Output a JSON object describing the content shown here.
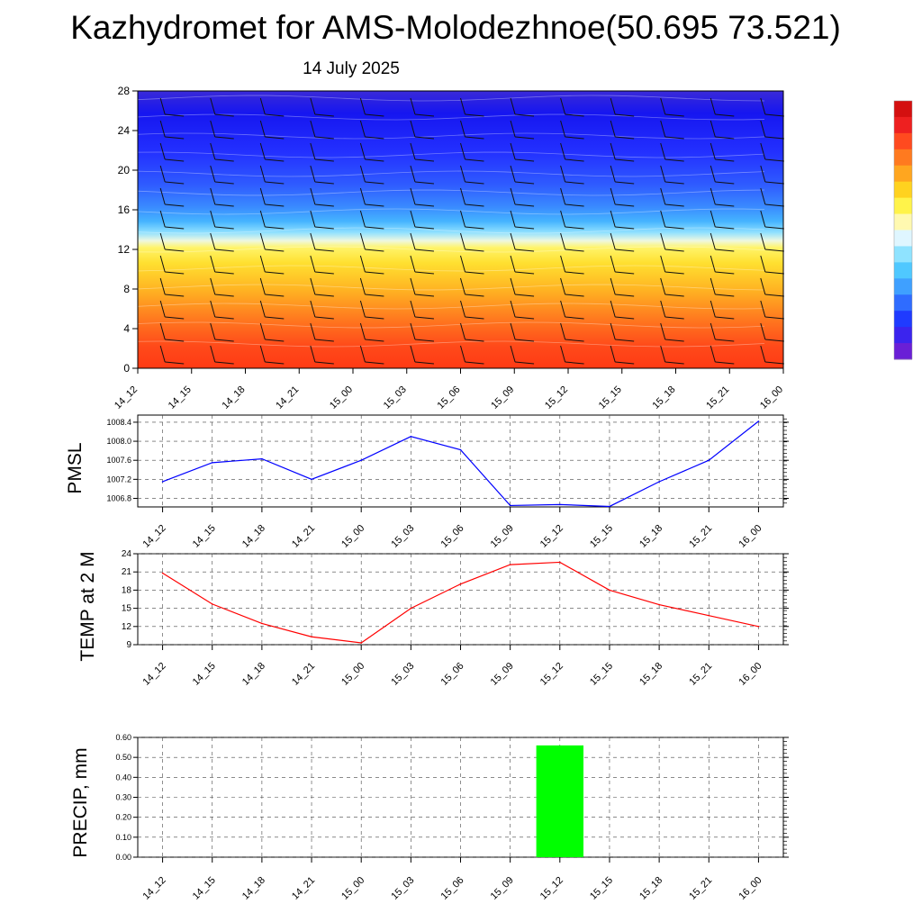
{
  "title": "Kazhydromet for AMS-Molodezhnoe(50.695 73.521)",
  "subtitle": "14 July 2025",
  "chart_data": [
    {
      "type": "heatmap",
      "description_panel": "vertical cross-section",
      "x_categories": [
        "14_12",
        "14_15",
        "14_18",
        "14_21",
        "15_00",
        "15_03",
        "15_06",
        "15_09",
        "15_12",
        "15_15",
        "15_18",
        "15_21",
        "16_00"
      ],
      "yticks": [
        0,
        4,
        8,
        12,
        16,
        20,
        24,
        28
      ],
      "ylim": [
        0,
        28
      ],
      "colorbar_colors": [
        "#6a1fd6",
        "#3b24ee",
        "#1f3bff",
        "#2f6cff",
        "#3fa0ff",
        "#4fc8ff",
        "#8fe3ff",
        "#dff6ff",
        "#fff9b0",
        "#fff34a",
        "#ffd21f",
        "#ffa61f",
        "#ff7a1f",
        "#ff4a1f",
        "#ee2020",
        "#d41010"
      ],
      "field_colors": {
        "top": "#1a14f0",
        "mid": "#3fb0ff",
        "lower": "#ffee33",
        "bottom": "#ff3a18"
      }
    },
    {
      "type": "line",
      "ylabel": "PMSL",
      "x": [
        "14_12",
        "14_15",
        "14_18",
        "14_21",
        "15_00",
        "15_03",
        "15_06",
        "15_09",
        "15_12",
        "15_15",
        "15_18",
        "15_21",
        "16_00"
      ],
      "yticks": [
        "1006.8",
        "1007.2",
        "1007.6",
        "1008.0",
        "1008.4"
      ],
      "ylim": [
        1006.62,
        1008.55
      ],
      "series": [
        {
          "color": "#0000ff",
          "values": [
            1007.15,
            1007.55,
            1007.63,
            1007.2,
            1007.6,
            1008.1,
            1007.82,
            1006.65,
            1006.67,
            1006.63,
            1007.15,
            1007.6,
            1008.42
          ]
        }
      ]
    },
    {
      "type": "line",
      "ylabel": "TEMP at 2 M",
      "x": [
        "14_12",
        "14_15",
        "14_18",
        "14_21",
        "15_00",
        "15_03",
        "15_06",
        "15_09",
        "15_12",
        "15_15",
        "15_18",
        "15_21",
        "16_00"
      ],
      "yticks": [
        "9",
        "12",
        "15",
        "18",
        "21",
        "24"
      ],
      "ylim": [
        9,
        24
      ],
      "series": [
        {
          "color": "#ff0000",
          "values": [
            20.8,
            15.7,
            12.5,
            10.3,
            9.3,
            15.0,
            19.0,
            22.2,
            22.6,
            18.0,
            15.6,
            13.8,
            12.0
          ]
        }
      ]
    },
    {
      "type": "bar",
      "ylabel": "PRECIP, mm",
      "categories": [
        "14_12",
        "14_15",
        "14_18",
        "14_21",
        "15_00",
        "15_03",
        "15_06",
        "15_09",
        "15_12",
        "15_15",
        "15_18",
        "15_21",
        "16_00"
      ],
      "yticks": [
        "0.00",
        "0.10",
        "0.20",
        "0.30",
        "0.40",
        "0.50",
        "0.60"
      ],
      "ylim": [
        0,
        0.6
      ],
      "color": "#00ff00",
      "values": [
        0,
        0,
        0,
        0,
        0,
        0,
        0,
        0,
        0.56,
        0,
        0,
        0,
        0
      ]
    }
  ]
}
